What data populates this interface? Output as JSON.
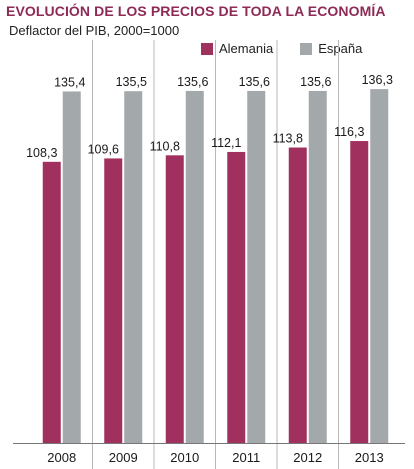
{
  "chart_data": {
    "type": "bar",
    "title": "EVOLUCIÓN DE LOS PRECIOS DE TODA LA ECONOMÍA",
    "subtitle": "Deflactor del PIB, 2000=1000",
    "xlabel": "",
    "ylabel": "",
    "categories": [
      "2008",
      "2009",
      "2010",
      "2011",
      "2012",
      "2013"
    ],
    "series": [
      {
        "name": "Alemania",
        "color": "#a0315f",
        "values": [
          108.3,
          109.6,
          110.8,
          112.1,
          113.8,
          116.3
        ],
        "labels": [
          "108,3",
          "109,6",
          "110,8",
          "112,1",
          "113,8",
          "116,3"
        ]
      },
      {
        "name": "España",
        "color": "#a3a9ab",
        "values": [
          135.4,
          135.5,
          135.6,
          135.6,
          135.6,
          136.3
        ],
        "labels": [
          "135,4",
          "135,5",
          "135,6",
          "135,6",
          "135,6",
          "136,3"
        ]
      }
    ],
    "ylim": [
      0,
      137.5
    ],
    "grid": false,
    "legend_position": "top-right",
    "colors": {
      "title": "#8e2a55",
      "divider": "#b8b8b8",
      "baseline": "#777777"
    }
  }
}
